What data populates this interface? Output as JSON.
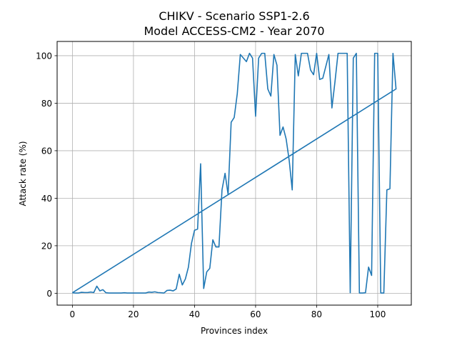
{
  "chart_data": {
    "type": "line",
    "title": "CHIKV - Scenario SSP1-2.6",
    "subtitle": "Model ACCESS-CM2 - Year 2070",
    "xlabel": "Provinces index",
    "ylabel": "Attack rate (%)",
    "xlim": [
      -5,
      111
    ],
    "ylim": [
      -5,
      106
    ],
    "xticks": [
      0,
      20,
      40,
      60,
      80,
      100
    ],
    "yticks": [
      0,
      20,
      40,
      60,
      80,
      100
    ],
    "grid": true,
    "line_color": "#1f77b4",
    "series": [
      {
        "x": [
          0,
          1,
          2,
          3,
          4,
          5,
          6,
          7,
          8,
          9,
          10,
          11,
          12,
          13,
          14,
          15,
          16,
          17,
          18,
          19,
          20,
          21,
          22,
          23,
          24,
          25,
          26,
          27,
          28,
          29,
          30,
          31,
          32,
          33,
          34,
          35,
          36,
          37,
          38,
          39,
          40,
          41,
          42,
          43,
          44,
          45,
          46,
          47,
          48,
          49,
          50,
          51,
          52,
          53,
          54,
          55,
          56,
          57,
          58,
          59,
          60,
          61,
          62,
          63,
          64,
          65,
          66,
          67,
          68,
          69,
          70,
          71,
          72,
          73,
          74,
          75,
          76,
          77,
          78,
          79,
          80,
          81,
          82,
          83,
          84,
          85,
          86,
          87,
          88,
          89,
          90,
          91,
          92,
          93,
          94,
          95,
          96,
          97,
          98,
          99,
          100,
          101,
          102,
          103,
          104,
          105,
          106,
          0
        ],
        "y": [
          0.2,
          0.1,
          0.1,
          0.4,
          0.3,
          0.3,
          0.5,
          0.3,
          3.0,
          1.0,
          1.5,
          0.2,
          0.1,
          0.1,
          0.1,
          0.1,
          0.1,
          0.2,
          0.1,
          0.1,
          0.1,
          0.1,
          0.1,
          0.1,
          0.1,
          0.5,
          0.4,
          0.6,
          0.3,
          0.2,
          0.1,
          1.2,
          1.3,
          1.0,
          1.8,
          8.0,
          3.5,
          6.0,
          11.0,
          21.0,
          26.5,
          27.0,
          54.5,
          2.0,
          9.0,
          10.5,
          22.5,
          19.5,
          19.5,
          43.5,
          50.5,
          41.5,
          72.0,
          74.0,
          84.0,
          100.5,
          99.0,
          97.5,
          101.0,
          99.0,
          74.5,
          99.0,
          101.0,
          101.0,
          86.0,
          83.0,
          100.5,
          96.0,
          66.5,
          70.0,
          65.0,
          56.0,
          43.5,
          100.5,
          91.5,
          101.0,
          101.0,
          101.0,
          94.0,
          92.0,
          101.0,
          90.0,
          90.5,
          95.5,
          100.5,
          78.0,
          89.0,
          101.0,
          101.0,
          101.0,
          101.0,
          0.2,
          99.0,
          101.0,
          0.1,
          0.1,
          0.2,
          11.0,
          7.5,
          101.0,
          101.0,
          0.1,
          0.1,
          43.5,
          44.0,
          101.0,
          86.0,
          0.2
        ]
      }
    ]
  }
}
